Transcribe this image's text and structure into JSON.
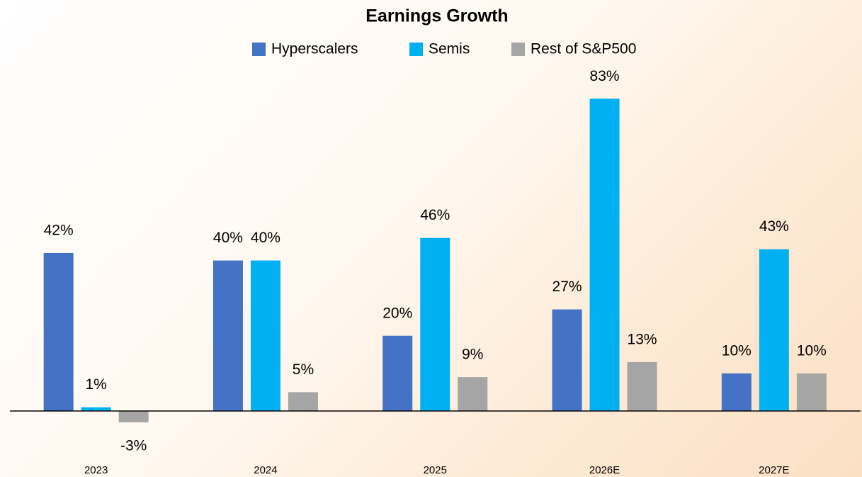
{
  "chart_data": {
    "type": "bar",
    "title": "Earnings Growth",
    "categories": [
      "2023",
      "2024",
      "2025",
      "2026E",
      "2027E"
    ],
    "series": [
      {
        "name": "Hyperscalers",
        "color": "#4472c4",
        "values": [
          42,
          40,
          20,
          27,
          10
        ],
        "value_labels": [
          "42%",
          "40%",
          "20%",
          "27%",
          "10%"
        ]
      },
      {
        "name": "Semis",
        "color": "#00b0f0",
        "values": [
          1,
          40,
          46,
          83,
          43
        ],
        "value_labels": [
          "1%",
          "40%",
          "46%",
          "83%",
          "43%"
        ]
      },
      {
        "name": "Rest of S&P500",
        "color": "#a5a5a5",
        "values": [
          -3,
          5,
          9,
          13,
          10
        ],
        "value_labels": [
          "-3%",
          "5%",
          "9%",
          "13%",
          "10%"
        ]
      }
    ],
    "ylim": [
      -10,
      100
    ]
  }
}
